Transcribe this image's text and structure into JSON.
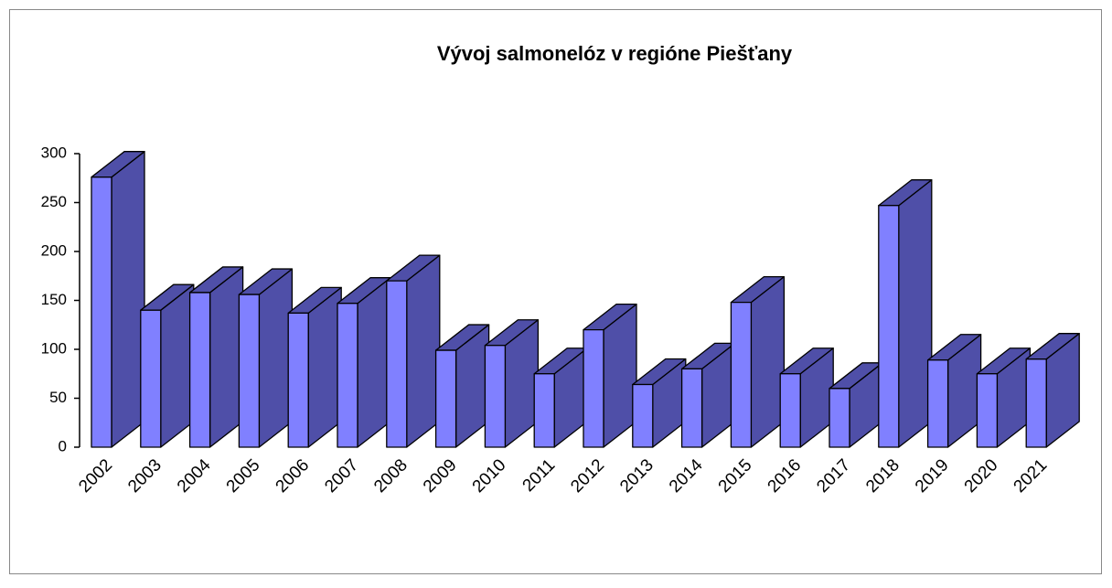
{
  "chart_data": {
    "type": "bar3d",
    "title": "Vývoj salmonelóz v regióne Piešťany",
    "categories": [
      "2002",
      "2003",
      "2004",
      "2005",
      "2006",
      "2007",
      "2008",
      "2009",
      "2010",
      "2011",
      "2012",
      "2013",
      "2014",
      "2015",
      "2016",
      "2017",
      "2018",
      "2019",
      "2020",
      "2021"
    ],
    "values": [
      276,
      140,
      158,
      156,
      137,
      147,
      170,
      99,
      104,
      75,
      120,
      64,
      80,
      148,
      75,
      60,
      247,
      89,
      75,
      90
    ],
    "color": "#8080ff",
    "side_color": "#4f4fa8",
    "ylim": [
      0,
      300
    ],
    "yticks": [
      0,
      50,
      100,
      150,
      200,
      250,
      300
    ]
  }
}
